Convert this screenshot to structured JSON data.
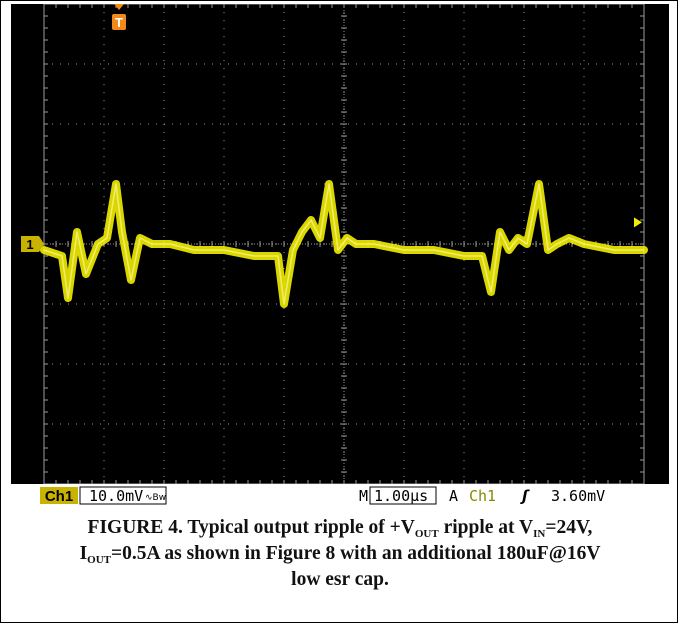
{
  "scope": {
    "background": "#000000",
    "grid_color": "#9a9a9a",
    "trace_color": "#f2ee00",
    "channel_marker_color": "#c8b400",
    "trigger_marker_color": "#f28a1a",
    "channel_marker_label": "1",
    "trigger_marker_label": "T",
    "status": {
      "channel": "Ch1",
      "volts_per_div": "10.0mV",
      "bw_mark": "∿Bw",
      "timebase_prefix": "M",
      "time_per_div": "1.00µs",
      "trigger_mode": "A",
      "trigger_channel": "Ch1",
      "trigger_slope": "ʃ",
      "trigger_level": "3.60mV"
    }
  },
  "chart_data": {
    "type": "line",
    "title": "",
    "xlabel": "",
    "ylabel": "",
    "grid": true,
    "x_unit": "µs",
    "y_unit": "mV",
    "xlim": [
      0,
      10
    ],
    "ylim": [
      -40,
      40
    ],
    "x_divisions": 10,
    "y_divisions": 8,
    "trigger_position_div": 1.25,
    "trigger_level_mV": 3.6,
    "series": [
      {
        "x": [
          0.0,
          0.3,
          0.4,
          0.55,
          0.7,
          0.9,
          1.05,
          1.2,
          1.3,
          1.45,
          1.6,
          1.8,
          2.1,
          2.5,
          3.0,
          3.5,
          3.9,
          4.0,
          4.15,
          4.3,
          4.45,
          4.6,
          4.75,
          4.9,
          5.05,
          5.2,
          5.5,
          6.0,
          6.5,
          7.0,
          7.3,
          7.45,
          7.6,
          7.75,
          7.9,
          8.05,
          8.25,
          8.4,
          8.55,
          8.75,
          9.0,
          9.5,
          10.0
        ],
        "y": [
          -1,
          -2,
          -9,
          2,
          -5,
          0,
          1,
          10,
          2,
          -6,
          1,
          0,
          0,
          -1,
          -1,
          -2,
          -2,
          -10,
          -1,
          2,
          4,
          1,
          10,
          -1,
          1,
          0,
          0,
          -1,
          -1,
          -2,
          -2,
          -8,
          2,
          -1,
          1,
          0,
          10,
          -1,
          0,
          1,
          0,
          -1,
          -1
        ]
      }
    ]
  },
  "caption": {
    "part1": "FIGURE 4. Typical output ripple of +V",
    "sub1": "OUT",
    "part2": " ripple at V",
    "sub2": "IN",
    "part3": "=24V,",
    "part4": "I",
    "sub3": "OUT",
    "part5": "=0.5A as shown in Figure 8 with an additional 180uF@16V",
    "part6": "low esr cap."
  }
}
